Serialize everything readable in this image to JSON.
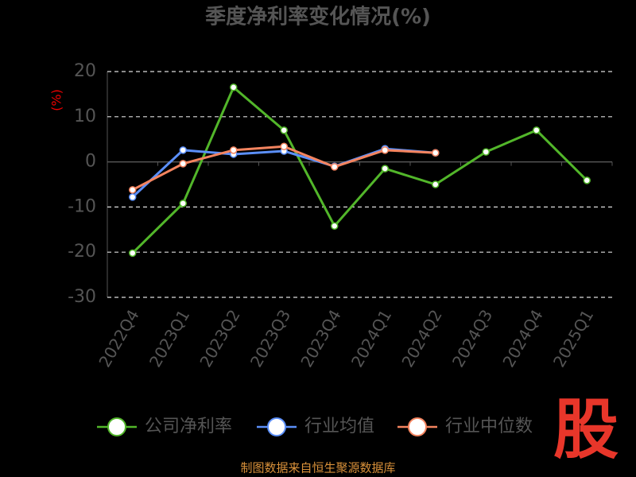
{
  "chart_data": {
    "type": "line",
    "title": "季度净利率变化情况(%)",
    "y_label": "(%)",
    "categories": [
      "2022Q4",
      "2023Q1",
      "2023Q2",
      "2023Q3",
      "2023Q4",
      "2024Q1",
      "2024Q2",
      "2024Q3",
      "2024Q4",
      "2025Q1"
    ],
    "series": [
      {
        "name": "公司净利率",
        "color": "#52b62a",
        "values": [
          -20.2,
          -9.2,
          16.5,
          7.0,
          -14.2,
          -1.5,
          -5.0,
          2.2,
          7.0,
          -4.1
        ]
      },
      {
        "name": "行业均值",
        "color": "#5b8ff9",
        "values": [
          -7.8,
          2.6,
          1.7,
          2.4,
          -1.0,
          2.9,
          2.0,
          null,
          null,
          null
        ]
      },
      {
        "name": "行业中位数",
        "color": "#f4845f",
        "values": [
          -6.2,
          -0.4,
          2.6,
          3.4,
          -1.1,
          2.6,
          2.0,
          null,
          null,
          null
        ]
      }
    ],
    "ylim": [
      -30,
      20
    ],
    "yticks": [
      -30,
      -20,
      -10,
      0,
      10,
      20
    ],
    "grid": true,
    "source": "制图数据来自恒生聚源数据库",
    "logo": "股"
  }
}
